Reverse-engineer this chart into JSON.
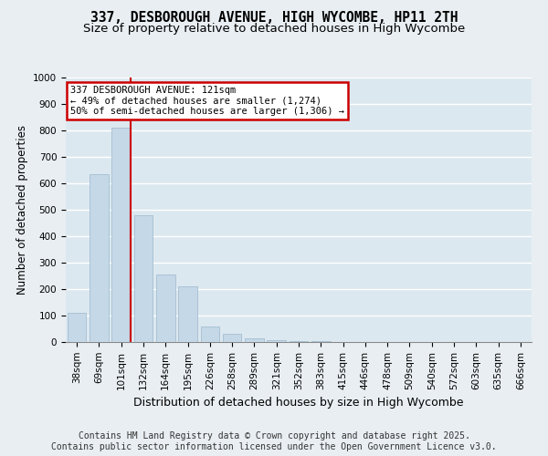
{
  "title": "337, DESBOROUGH AVENUE, HIGH WYCOMBE, HP11 2TH",
  "subtitle": "Size of property relative to detached houses in High Wycombe",
  "xlabel": "Distribution of detached houses by size in High Wycombe",
  "ylabel": "Number of detached properties",
  "bins": [
    "38sqm",
    "69sqm",
    "101sqm",
    "132sqm",
    "164sqm",
    "195sqm",
    "226sqm",
    "258sqm",
    "289sqm",
    "321sqm",
    "352sqm",
    "383sqm",
    "415sqm",
    "446sqm",
    "478sqm",
    "509sqm",
    "540sqm",
    "572sqm",
    "603sqm",
    "635sqm",
    "666sqm"
  ],
  "values": [
    110,
    635,
    810,
    480,
    255,
    210,
    60,
    30,
    15,
    8,
    3,
    2,
    1,
    0,
    0,
    0,
    0,
    0,
    0,
    0,
    0
  ],
  "bar_color": "#c5d8e8",
  "bar_edge_color": "#9ab8cc",
  "vline_x": 2.425,
  "annotation_text": "337 DESBOROUGH AVENUE: 121sqm\n← 49% of detached houses are smaller (1,274)\n50% of semi-detached houses are larger (1,306) →",
  "annotation_box_color": "#ffffff",
  "annotation_box_edge": "#cc0000",
  "vline_color": "#cc0000",
  "ylim": [
    0,
    1000
  ],
  "yticks": [
    0,
    100,
    200,
    300,
    400,
    500,
    600,
    700,
    800,
    900,
    1000
  ],
  "background_color": "#dce8f0",
  "plot_bg_color": "#dce8f0",
  "fig_bg_color": "#e8eef2",
  "grid_color": "#ffffff",
  "footer": "Contains HM Land Registry data © Crown copyright and database right 2025.\nContains public sector information licensed under the Open Government Licence v3.0.",
  "title_fontsize": 10.5,
  "subtitle_fontsize": 9.5,
  "xlabel_fontsize": 9,
  "ylabel_fontsize": 8.5,
  "tick_fontsize": 7.5,
  "footer_fontsize": 7
}
